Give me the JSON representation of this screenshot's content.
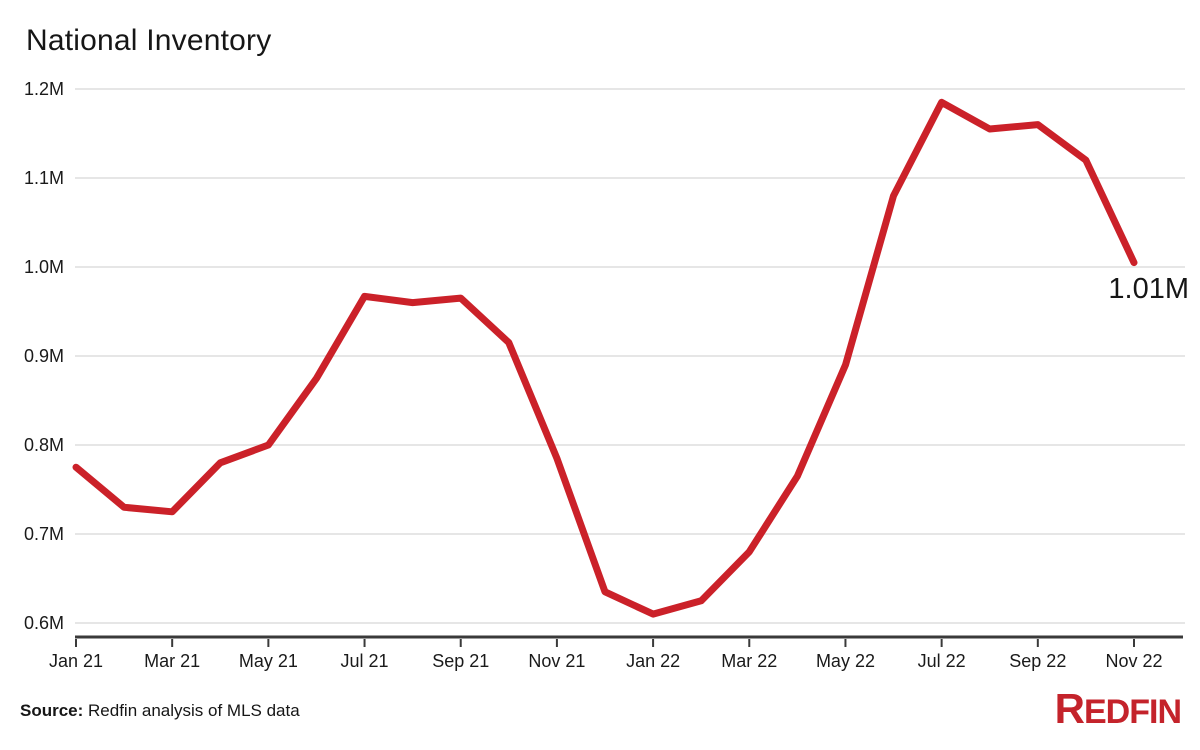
{
  "title": "National Inventory",
  "footer": {
    "source_label": "Source:",
    "source_text": " Redfin analysis of MLS data",
    "logo_first": "R",
    "logo_rest": "EDFIN"
  },
  "colors": {
    "line": "#cb2129",
    "grid": "#e2e2e2",
    "axis": "#3a3a3a",
    "text": "#1a1a1a",
    "logo": "#c4232b"
  },
  "chart_data": {
    "type": "line",
    "title": "National Inventory",
    "x": [
      "Jan 21",
      "Feb 21",
      "Mar 21",
      "Apr 21",
      "May 21",
      "Jun 21",
      "Jul 21",
      "Aug 21",
      "Sep 21",
      "Oct 21",
      "Nov 21",
      "Dec 21",
      "Jan 22",
      "Feb 22",
      "Mar 22",
      "Apr 22",
      "May 22",
      "Jun 22",
      "Jul 22",
      "Aug 22",
      "Sep 22",
      "Oct 22",
      "Nov 22"
    ],
    "values": [
      0.775,
      0.73,
      0.725,
      0.78,
      0.8,
      0.875,
      0.967,
      0.96,
      0.965,
      0.915,
      0.785,
      0.635,
      0.61,
      0.625,
      0.68,
      0.765,
      0.89,
      1.08,
      1.185,
      1.155,
      1.16,
      1.12,
      1.005
    ],
    "units": "millions of homes",
    "ylim": [
      0.6,
      1.2
    ],
    "y_ticks": [
      {
        "label": "1.2M",
        "value": 1.2
      },
      {
        "label": "1.1M",
        "value": 1.1
      },
      {
        "label": "1.0M",
        "value": 1.0
      },
      {
        "label": "0.9M",
        "value": 0.9
      },
      {
        "label": "0.8M",
        "value": 0.8
      },
      {
        "label": "0.7M",
        "value": 0.7
      },
      {
        "label": "0.6M",
        "value": 0.6
      }
    ],
    "x_tick_labels": [
      "Jan 21",
      "Mar 21",
      "May 21",
      "Jul 21",
      "Sep 21",
      "Nov 21",
      "Jan 22",
      "Mar 22",
      "May 22",
      "Jul 22",
      "Sep 22",
      "Nov 22"
    ],
    "x_tick_month_indices": [
      0,
      2,
      4,
      6,
      8,
      10,
      12,
      14,
      16,
      18,
      20,
      22
    ],
    "last_point_label": "1.01M",
    "grid": true,
    "legend": false
  }
}
